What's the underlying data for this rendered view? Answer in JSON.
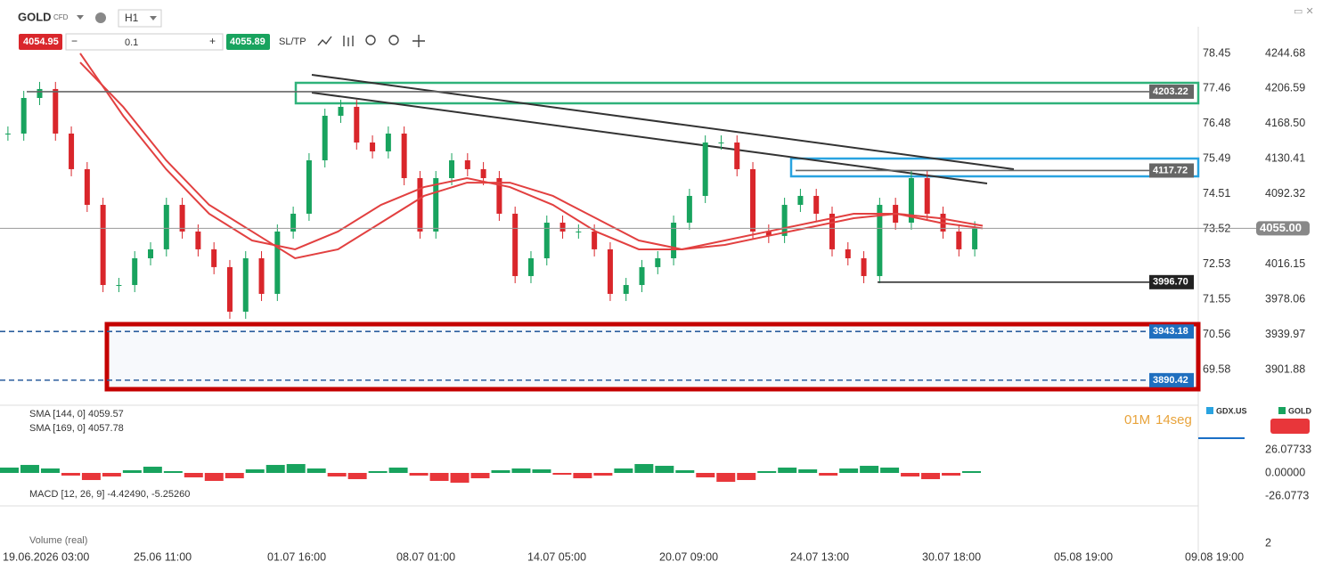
{
  "toolbar": {
    "symbol": "GOLD",
    "symbol_type": "CFD",
    "timeframe": "H1",
    "sell_price": "4054.95",
    "volume": "0.1",
    "buy_price": "4055.89",
    "sl_tp": "SL/TP"
  },
  "price_axis": {
    "ticks": [
      4244.68,
      4206.59,
      {
        "value": 4168.5,
        "label": "4168.50"
      },
      4130.41,
      4092.32,
      4016.15,
      3978.06,
      3939.97,
      3901.88
    ]
  },
  "secondary_axis": {
    "ticks": [
      78.45,
      77.46,
      76.48,
      75.49,
      74.51,
      73.52,
      72.53,
      71.55,
      70.56,
      69.58
    ]
  },
  "time_axis": {
    "labels": [
      "19.06.2026 03:00",
      "25.06 11:00",
      "01.07 16:00",
      "08.07 01:00",
      "14.07 05:00",
      "20.07 09:00",
      "24.07 13:00",
      "30.07 18:00",
      "05.08 19:00",
      "09.08 19:00"
    ]
  },
  "levels": [
    {
      "value": 4203.22,
      "label": "4203.22"
    },
    {
      "value": 4117.72,
      "label": "4117.72"
    },
    {
      "value": 4055,
      "label": "4055.00"
    },
    {
      "value": 3996.7,
      "label": "3996.70"
    },
    {
      "value": 3943.18,
      "label": "3943.18"
    },
    {
      "value": 3890.42,
      "label": "3890.42"
    }
  ],
  "candles": {
    "closes": [
      4157.8,
      4196.4,
      4206.1,
      4157.8,
      4119.2,
      4080.5,
      3993.6,
      3993.6,
      4022.6,
      4032.3,
      4080.5,
      4051.6,
      4032.3,
      4013.0,
      3964.7,
      4022.6,
      3984.0,
      4051.6,
      4070.9,
      4128.8,
      4177.1,
      4186.8,
      4148.1,
      4138.5,
      4157.8,
      4109.5,
      4051.6,
      4109.5,
      4128.8,
      4119.2,
      4109.5,
      4070.9,
      4003.3,
      4022.6,
      4061.2,
      4051.6,
      4051.6,
      4032.3,
      3984.0,
      3993.6,
      4013.0,
      4022.6,
      4061.2,
      4090.2,
      4148.1,
      4148.1,
      4119.2,
      4051.6,
      4046.8,
      4080.5,
      4090.2,
      4070.9,
      4032.3,
      4022.6,
      4003.3,
      4080.5,
      4061.2,
      4109.5,
      4070.9,
      4051.6,
      4032.3,
      4055
    ]
  },
  "sma": [
    {
      "name": "SMA [144, 0] 4059.57",
      "values": [
        4244.7,
        4177.1,
        4119.2,
        4070.9,
        4041.9,
        4032.3,
        4051.6,
        4080.5,
        4099.8,
        4109.5,
        4099.8,
        4080.5,
        4051.6,
        4032.3,
        4032.3,
        4041.9,
        4051.6,
        4061.2,
        4070.9,
        4070.9,
        4061.2,
        4055
      ]
    },
    {
      "name": "SMA [169, 0] 4057.78",
      "values": [
        4235.0,
        4186.8,
        4128.8,
        4080.5,
        4051.6,
        4022.6,
        4032.3,
        4061.2,
        4090.2,
        4104.6,
        4104.6,
        4090.2,
        4066.0,
        4041.9,
        4032.3,
        4037.1,
        4046.8,
        4056.4,
        4066.0,
        4070.9,
        4066.0,
        4057.8
      ]
    }
  ],
  "panel": {
    "timer_min": "01M",
    "timer_sec": "14seg",
    "legend": [
      "GDX.US",
      "GOLD"
    ]
  },
  "macd": {
    "label": "MACD [12, 26, 9] -4.42490, -5.25260",
    "ticks": [
      {
        "value": 26.07733,
        "label": "26.07733"
      },
      {
        "value": 0,
        "label": "0.00000"
      },
      {
        "value": -26.0773,
        "label": "-26.0773"
      }
    ],
    "histogram": [
      6,
      9,
      5,
      -3,
      -8,
      -4,
      3,
      7,
      2,
      -5,
      -9,
      -6,
      4,
      9,
      10,
      5,
      -4,
      -7,
      2,
      6,
      -3,
      -9,
      -11,
      -6,
      3,
      5,
      4,
      -2,
      -6,
      -3,
      5,
      10,
      8,
      3,
      -5,
      -10,
      -8,
      2,
      6,
      4,
      -3,
      5,
      8,
      6,
      -4,
      -7,
      -3,
      2
    ]
  },
  "volume": {
    "label": "Volume (real)",
    "axis_label": "2"
  }
}
